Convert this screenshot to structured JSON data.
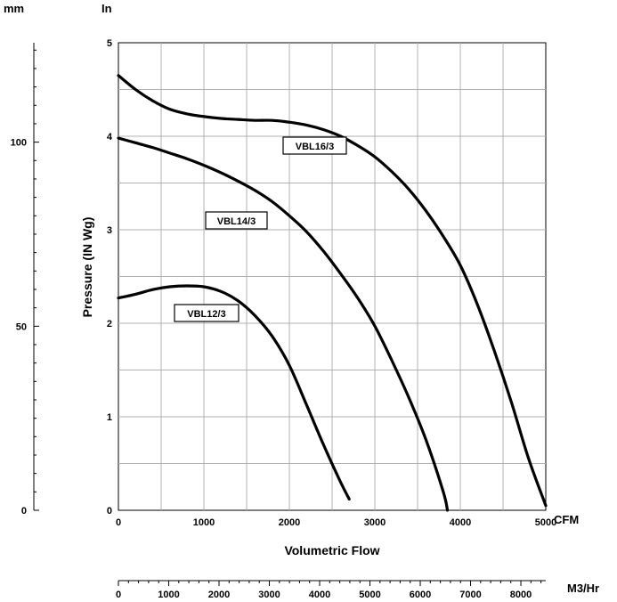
{
  "units": {
    "mm": "mm",
    "in": "In",
    "cfm": "CFM",
    "m3hr": "M3/Hr"
  },
  "chart_data": {
    "type": "line",
    "xlabel": "Volumetric Flow",
    "ylabel": "Pressure (IN Wg)",
    "xlim": [
      0,
      5000
    ],
    "ylim": [
      0,
      5
    ],
    "x_ticks": [
      "0",
      "1000",
      "2000",
      "3000",
      "4000",
      "5000"
    ],
    "y_ticks": [
      "0",
      "1",
      "2",
      "3",
      "4",
      "5"
    ],
    "grid": true,
    "mm_axis": {
      "ticks": [
        "0",
        "50",
        "100"
      ],
      "values": [
        0,
        50,
        100
      ],
      "range": [
        0,
        127
      ]
    },
    "m3hr_axis": {
      "ticks": [
        "0",
        "1000",
        "2000",
        "3000",
        "4000",
        "5000",
        "6000",
        "7000",
        "8000"
      ],
      "range": [
        0,
        8495
      ]
    },
    "series": [
      {
        "name": "VBL16/3",
        "x": [
          0,
          200,
          400,
          600,
          800,
          1000,
          1200,
          1400,
          1600,
          1800,
          2000,
          2200,
          2400,
          2600,
          2800,
          3000,
          3200,
          3400,
          3600,
          3800,
          4000,
          4200,
          4400,
          4600,
          4800,
          5000
        ],
        "y": [
          4.65,
          4.5,
          4.38,
          4.29,
          4.24,
          4.21,
          4.19,
          4.18,
          4.17,
          4.17,
          4.15,
          4.12,
          4.07,
          4.0,
          3.9,
          3.78,
          3.62,
          3.43,
          3.2,
          2.93,
          2.62,
          2.2,
          1.7,
          1.15,
          0.55,
          0.05
        ]
      },
      {
        "name": "VBL14/3",
        "x": [
          0,
          200,
          400,
          600,
          800,
          1000,
          1200,
          1400,
          1600,
          1800,
          2000,
          2200,
          2400,
          2600,
          2800,
          3000,
          3200,
          3400,
          3600,
          3800,
          3850
        ],
        "y": [
          3.98,
          3.93,
          3.88,
          3.82,
          3.76,
          3.69,
          3.61,
          3.52,
          3.42,
          3.3,
          3.15,
          2.98,
          2.77,
          2.53,
          2.27,
          1.97,
          1.6,
          1.2,
          0.75,
          0.2,
          0.0
        ]
      },
      {
        "name": "VBL12/3",
        "x": [
          0,
          200,
          400,
          600,
          800,
          1000,
          1200,
          1400,
          1600,
          1800,
          2000,
          2200,
          2400,
          2600,
          2700
        ],
        "y": [
          2.27,
          2.31,
          2.36,
          2.39,
          2.4,
          2.39,
          2.34,
          2.24,
          2.08,
          1.86,
          1.55,
          1.13,
          0.7,
          0.3,
          0.12
        ]
      }
    ]
  }
}
